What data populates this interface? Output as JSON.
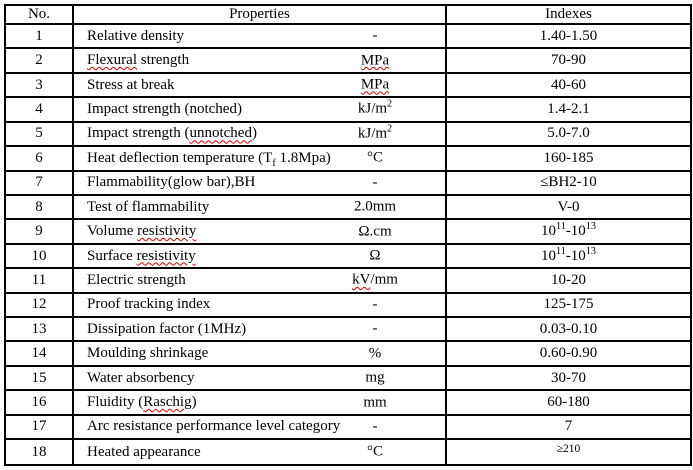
{
  "colors": {
    "background": "#ffffff",
    "text": "#000000",
    "border": "#000000",
    "squiggle": "#e00000"
  },
  "table": {
    "header": {
      "no": "No.",
      "properties": "Properties",
      "indexes": "Indexes"
    },
    "rows": [
      {
        "no": "1",
        "property": [
          {
            "t": "Relative density"
          }
        ],
        "unit": [
          {
            "t": "-"
          }
        ],
        "index": [
          {
            "t": "1.40-1.50"
          }
        ]
      },
      {
        "no": "2",
        "property": [
          {
            "t": "Flexural",
            "sq": true
          },
          {
            "t": " strength"
          }
        ],
        "unit": [
          {
            "t": "MPa",
            "sq": true
          }
        ],
        "index": [
          {
            "t": "70-90"
          }
        ]
      },
      {
        "no": "3",
        "property": [
          {
            "t": "Stress at break"
          }
        ],
        "unit": [
          {
            "t": "MPa",
            "sq": true
          }
        ],
        "index": [
          {
            "t": "40-60"
          }
        ]
      },
      {
        "no": "4",
        "property": [
          {
            "t": "Impact strength (notched)"
          }
        ],
        "unit": [
          {
            "t": "kJ/m"
          },
          {
            "t": "2",
            "sup": true
          }
        ],
        "index": [
          {
            "t": "1.4-2.1"
          }
        ]
      },
      {
        "no": "5",
        "property": [
          {
            "t": "Impact strength ("
          },
          {
            "t": "unnotched",
            "sq": true
          },
          {
            "t": ")"
          }
        ],
        "unit": [
          {
            "t": "kJ/m"
          },
          {
            "t": "2",
            "sup": true
          }
        ],
        "index": [
          {
            "t": "5.0-7.0"
          }
        ]
      },
      {
        "no": "6",
        "property": [
          {
            "t": "Heat deflection temperature (T"
          },
          {
            "t": "f",
            "sub": true,
            "sq": true
          },
          {
            "t": " 1.8Mpa)"
          }
        ],
        "unit": [
          {
            "t": "°C"
          }
        ],
        "index": [
          {
            "t": "160-185"
          }
        ]
      },
      {
        "no": "7",
        "property": [
          {
            "t": "Flammability(glow bar),BH"
          }
        ],
        "unit": [
          {
            "t": "-"
          }
        ],
        "index": [
          {
            "t": "≤BH2-10"
          }
        ]
      },
      {
        "no": "8",
        "property": [
          {
            "t": "Test of flammability"
          }
        ],
        "unit": [
          {
            "t": "2.0mm"
          }
        ],
        "index": [
          {
            "t": "V-0"
          }
        ]
      },
      {
        "no": "9",
        "property": [
          {
            "t": "Volume "
          },
          {
            "t": "resistivity",
            "sq": true
          }
        ],
        "unit": [
          {
            "t": "Ω.cm"
          }
        ],
        "index": [
          {
            "t": "10"
          },
          {
            "t": "11",
            "sup": true
          },
          {
            "t": "-10"
          },
          {
            "t": "13",
            "sup": true
          }
        ]
      },
      {
        "no": "10",
        "property": [
          {
            "t": "Surface "
          },
          {
            "t": "resistivity",
            "sq": true
          }
        ],
        "unit": [
          {
            "t": "Ω"
          }
        ],
        "index": [
          {
            "t": "10"
          },
          {
            "t": "11",
            "sup": true
          },
          {
            "t": "-10"
          },
          {
            "t": "13",
            "sup": true
          }
        ]
      },
      {
        "no": "11",
        "property": [
          {
            "t": "Electric strength"
          }
        ],
        "unit": [
          {
            "t": "kV",
            "sq": true
          },
          {
            "t": "/mm"
          }
        ],
        "index": [
          {
            "t": "10-20"
          }
        ]
      },
      {
        "no": "12",
        "property": [
          {
            "t": "Proof tracking index"
          }
        ],
        "unit": [
          {
            "t": "-"
          }
        ],
        "index": [
          {
            "t": "125-175"
          }
        ]
      },
      {
        "no": "13",
        "property": [
          {
            "t": "Dissipation factor (1MHz)"
          }
        ],
        "unit": [
          {
            "t": "-"
          }
        ],
        "index": [
          {
            "t": "0.03-0.10"
          }
        ]
      },
      {
        "no": "14",
        "property": [
          {
            "t": "Moulding shrinkage"
          }
        ],
        "unit": [
          {
            "t": "%"
          }
        ],
        "index": [
          {
            "t": "0.60-0.90"
          }
        ]
      },
      {
        "no": "15",
        "property": [
          {
            "t": "Water absorbency"
          }
        ],
        "unit": [
          {
            "t": "mg"
          }
        ],
        "index": [
          {
            "t": "30-70"
          }
        ]
      },
      {
        "no": "16",
        "property": [
          {
            "t": "Fluidity ("
          },
          {
            "t": "Raschig",
            "sq": true
          },
          {
            "t": ")"
          }
        ],
        "unit": [
          {
            "t": "mm"
          }
        ],
        "index": [
          {
            "t": "60-180"
          }
        ]
      },
      {
        "no": "17",
        "property": [
          {
            "t": "Arc resistance performance level category"
          }
        ],
        "unit": [
          {
            "t": "-"
          }
        ],
        "index": [
          {
            "t": "7"
          }
        ]
      },
      {
        "no": "18",
        "property": [
          {
            "t": "Heated appearance"
          }
        ],
        "unit": [
          {
            "t": "°C"
          }
        ],
        "index": [
          {
            "t": "≥210",
            "small": true
          }
        ]
      }
    ]
  }
}
